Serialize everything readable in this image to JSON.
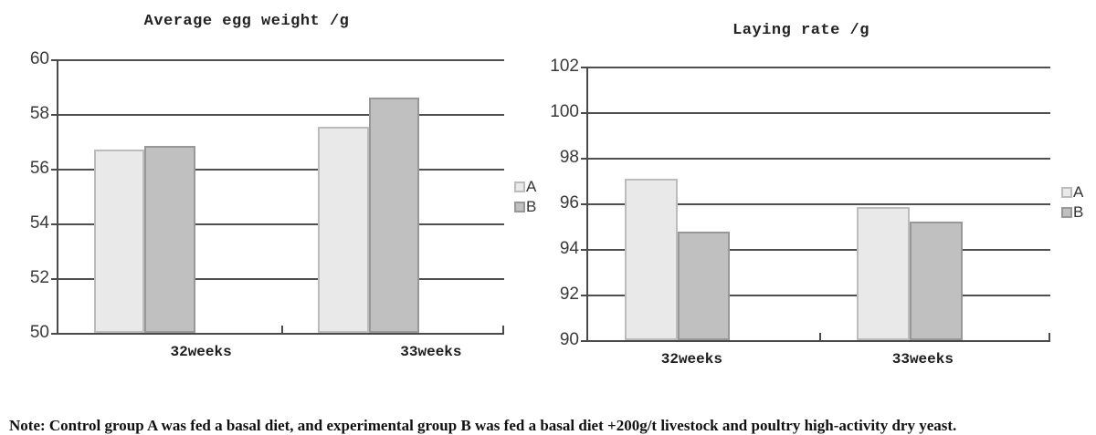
{
  "figure": {
    "note": "Note: Control group A was fed a basal diet, and experimental group B was fed a basal diet +200g/t livestock and poultry high-activity dry yeast."
  },
  "chart_data": [
    {
      "type": "bar",
      "title": "Average egg weight /g",
      "categories": [
        "32weeks",
        "33weeks"
      ],
      "series": [
        {
          "name": "A",
          "values": [
            56.7,
            57.55
          ],
          "color": "#e9e9e9",
          "border": "#bcbcbc"
        },
        {
          "name": "B",
          "values": [
            56.85,
            58.6
          ],
          "color": "#c0c0c0",
          "border": "#989898"
        }
      ],
      "xlabel": "",
      "ylabel": "",
      "ylim": [
        50,
        60
      ],
      "ytick_step": 2,
      "grid": true,
      "legend_position": "right"
    },
    {
      "type": "bar",
      "title": "Laying rate /g",
      "categories": [
        "32weeks",
        "33weeks"
      ],
      "series": [
        {
          "name": "A",
          "values": [
            97.1,
            95.85
          ],
          "color": "#e9e9e9",
          "border": "#bcbcbc"
        },
        {
          "name": "B",
          "values": [
            94.75,
            95.2
          ],
          "color": "#c0c0c0",
          "border": "#989898"
        }
      ],
      "xlabel": "",
      "ylabel": "",
      "ylim": [
        90,
        102
      ],
      "ytick_step": 2,
      "grid": true,
      "legend_position": "right"
    }
  ]
}
